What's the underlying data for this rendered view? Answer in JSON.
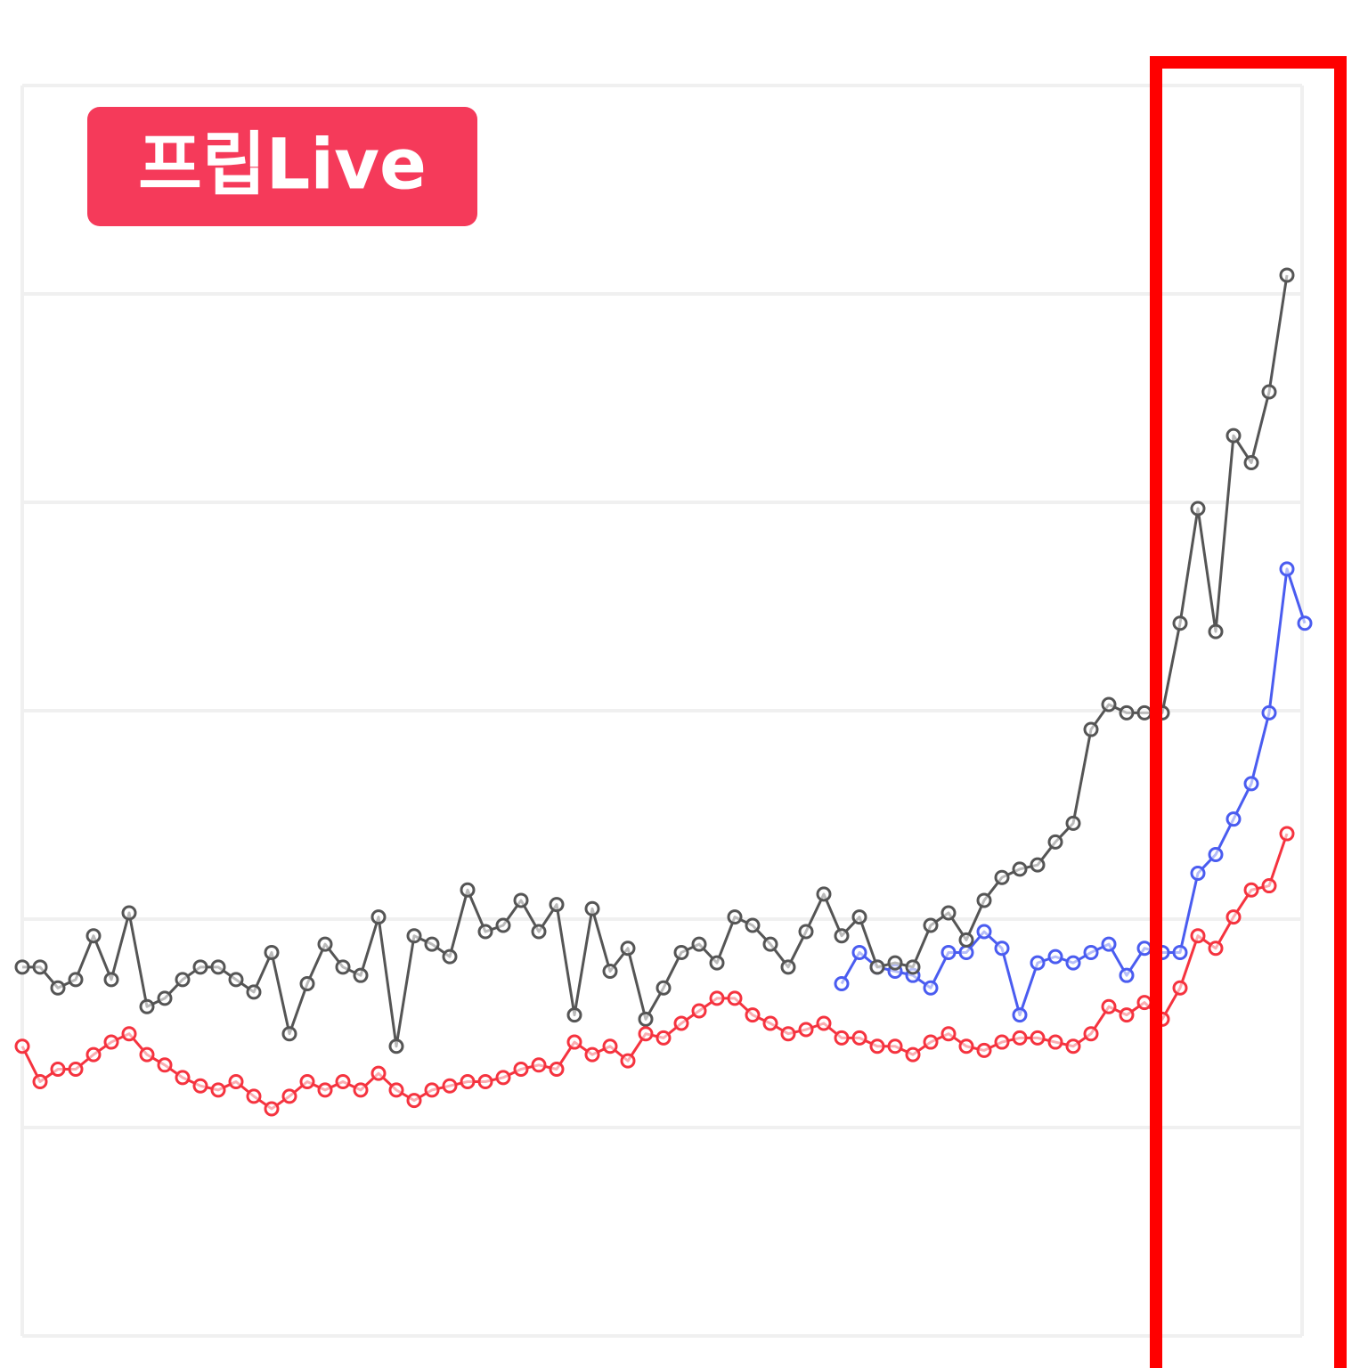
{
  "chart_data": {
    "type": "line",
    "badge": "프립Live",
    "x": [
      0,
      1,
      2,
      3,
      4,
      5,
      6,
      7,
      8,
      9,
      10,
      11,
      12,
      13,
      14,
      15,
      16,
      17,
      18,
      19,
      20,
      21,
      22,
      23,
      24,
      25,
      26,
      27,
      28,
      29,
      30,
      31,
      32,
      33,
      34,
      35,
      36,
      37,
      38,
      39,
      40,
      41,
      42,
      43,
      44,
      45,
      46,
      47,
      48,
      49,
      50,
      51,
      52,
      53,
      54,
      55,
      56,
      57,
      58,
      59,
      60,
      61,
      62,
      63,
      64,
      65,
      66,
      67,
      68,
      69,
      70,
      71,
      72
    ],
    "xlim": [
      0,
      72
    ],
    "ylim": [
      0,
      6
    ],
    "yticks": [
      0,
      1,
      2,
      3,
      4,
      5,
      6
    ],
    "grid": true,
    "series": [
      {
        "color": "#4a5cf0",
        "values": [
          null,
          null,
          null,
          null,
          null,
          null,
          null,
          null,
          null,
          null,
          null,
          null,
          null,
          null,
          null,
          null,
          null,
          null,
          null,
          null,
          null,
          null,
          null,
          null,
          null,
          null,
          null,
          null,
          null,
          null,
          null,
          null,
          null,
          null,
          null,
          null,
          null,
          null,
          null,
          null,
          null,
          null,
          null,
          null,
          null,
          null,
          1.69,
          1.84,
          1.77,
          1.75,
          1.73,
          1.67,
          1.84,
          1.84,
          1.94,
          1.86,
          1.54,
          1.79,
          1.82,
          1.79,
          1.84,
          1.88,
          1.73,
          1.86,
          1.84,
          1.84,
          2.22,
          2.31,
          2.48,
          2.65,
          2.99,
          3.68,
          3.42
        ]
      },
      {
        "color": "#555555",
        "values": [
          1.77,
          1.77,
          1.67,
          1.71,
          1.92,
          1.71,
          2.03,
          1.58,
          1.62,
          1.71,
          1.77,
          1.77,
          1.71,
          1.65,
          1.84,
          1.45,
          1.69,
          1.88,
          1.77,
          1.73,
          2.01,
          1.39,
          1.92,
          1.88,
          1.82,
          2.14,
          1.94,
          1.97,
          2.09,
          1.94,
          2.07,
          1.54,
          2.05,
          1.75,
          1.86,
          1.52,
          1.67,
          1.84,
          1.88,
          1.79,
          2.01,
          1.97,
          1.88,
          1.77,
          1.94,
          2.12,
          1.92,
          2.01,
          1.77,
          1.79,
          1.77,
          1.97,
          2.03,
          1.9,
          2.09,
          2.2,
          2.24,
          2.26,
          2.37,
          2.46,
          2.91,
          3.03,
          2.99,
          2.99,
          2.99,
          3.42,
          3.97,
          3.38,
          4.32,
          4.19,
          4.53,
          5.09,
          null
        ]
      },
      {
        "color": "#f5333f",
        "values": [
          1.39,
          1.22,
          1.28,
          1.28,
          1.35,
          1.41,
          1.45,
          1.35,
          1.3,
          1.24,
          1.2,
          1.18,
          1.22,
          1.15,
          1.09,
          1.15,
          1.22,
          1.18,
          1.22,
          1.18,
          1.26,
          1.18,
          1.13,
          1.18,
          1.2,
          1.22,
          1.22,
          1.24,
          1.28,
          1.3,
          1.28,
          1.41,
          1.35,
          1.39,
          1.32,
          1.45,
          1.43,
          1.5,
          1.56,
          1.62,
          1.62,
          1.54,
          1.5,
          1.45,
          1.47,
          1.5,
          1.43,
          1.43,
          1.39,
          1.39,
          1.35,
          1.41,
          1.45,
          1.39,
          1.37,
          1.41,
          1.43,
          1.43,
          1.41,
          1.39,
          1.45,
          1.58,
          1.54,
          1.6,
          1.52,
          1.67,
          1.92,
          1.86,
          2.01,
          2.14,
          2.16,
          2.41,
          null
        ]
      }
    ]
  }
}
